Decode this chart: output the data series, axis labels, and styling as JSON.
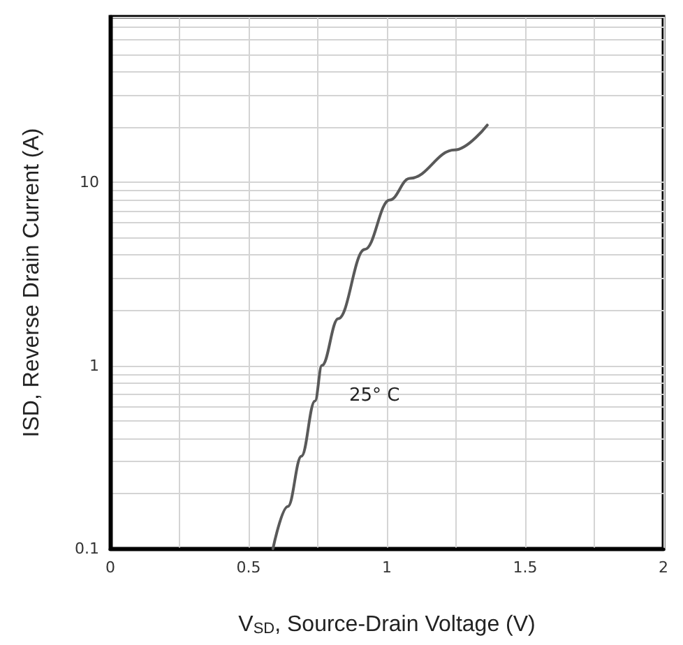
{
  "chart_data": {
    "type": "line",
    "xlabel": "V$_{SD}$, Source-Drain Voltage (V)",
    "ylabel": "ISD, Reverse Drain Current (A)",
    "log": "y",
    "grid": true,
    "marker": "none",
    "line_style": "solid",
    "xlim": [
      0,
      2
    ],
    "xticks": [
      0,
      {
        "value": 0.25,
        "label": null
      },
      0.5,
      {
        "value": 0.75,
        "label": null
      },
      1,
      {
        "value": 1.25,
        "label": null
      },
      1.5,
      {
        "value": 1.75,
        "label": null
      },
      2
    ],
    "ylim": [
      0.1,
      80
    ],
    "yticks": [
      0.1,
      {
        "value": 0.2,
        "label": null
      },
      {
        "value": 0.3,
        "label": null
      },
      {
        "value": 0.4,
        "label": null
      },
      {
        "value": 0.5,
        "label": null
      },
      {
        "value": 0.6,
        "label": null
      },
      {
        "value": 0.7,
        "label": null
      },
      {
        "value": 0.8,
        "label": null
      },
      {
        "value": 0.9,
        "label": null
      },
      1,
      {
        "value": 2,
        "label": null
      },
      {
        "value": 3,
        "label": null
      },
      {
        "value": 4,
        "label": null
      },
      {
        "value": 5,
        "label": null
      },
      {
        "value": 6,
        "label": null
      },
      {
        "value": 7,
        "label": null
      },
      {
        "value": 8,
        "label": null
      },
      {
        "value": 9,
        "label": null
      },
      10,
      {
        "value": 20,
        "label": null
      },
      {
        "value": 30,
        "label": null
      },
      {
        "value": 40,
        "label": null
      },
      {
        "value": 50,
        "label": null
      },
      {
        "value": 60,
        "label": null
      },
      {
        "value": 70,
        "label": null
      },
      {
        "value": 80,
        "label": null
      }
    ],
    "series": [
      {
        "color": "#595959",
        "x": [
          0.588,
          0.642,
          0.691,
          0.74,
          0.765,
          0.824,
          0.92,
          1.01,
          1.083,
          1.245,
          1.363
        ],
        "values": [
          0.1,
          0.17,
          0.32,
          0.64,
          1,
          1.8,
          4.3,
          8,
          10.5,
          15,
          20.5
        ]
      }
    ],
    "annotations": [
      "25° C"
    ]
  }
}
